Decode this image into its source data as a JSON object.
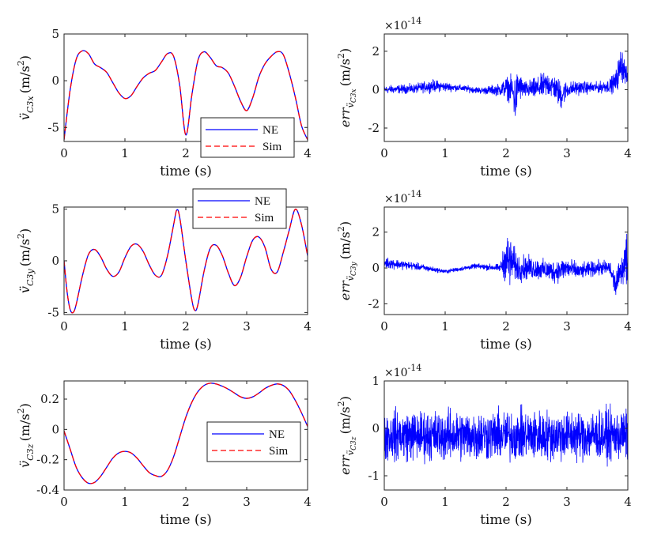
{
  "chart_data": [
    {
      "type": "line",
      "xlabel": "time (s)",
      "ylabel": {
        "symbol": "v̈",
        "sub": "C3x",
        "unit": "(m/s",
        "unit_sup": "2",
        "unit_close": ")"
      },
      "xlim": [
        0,
        4
      ],
      "ylim": [
        -6.5,
        5
      ],
      "xticks": [
        "0",
        "1",
        "2",
        "3",
        "4"
      ],
      "yticks": [
        {
          "v": 5,
          "label": "5"
        },
        {
          "v": 0,
          "label": "0"
        },
        {
          "v": -5,
          "label": "-5"
        }
      ],
      "legend": {
        "position": "bottom-right",
        "entries": [
          "NE",
          "Sim"
        ]
      },
      "series": [
        {
          "name": "NE",
          "color": "#0000ff",
          "style": "solid"
        },
        {
          "name": "Sim",
          "color": "#ff0000",
          "style": "dashed"
        }
      ],
      "x": [
        0,
        0.1,
        0.2,
        0.3,
        0.4,
        0.5,
        0.6,
        0.7,
        0.8,
        0.9,
        1.0,
        1.1,
        1.2,
        1.3,
        1.4,
        1.5,
        1.6,
        1.7,
        1.8,
        1.9,
        2.0,
        2.1,
        2.2,
        2.3,
        2.4,
        2.5,
        2.6,
        2.7,
        2.8,
        2.9,
        3.0,
        3.1,
        3.2,
        3.3,
        3.4,
        3.5,
        3.6,
        3.7,
        3.8,
        3.9,
        4.0
      ],
      "y": [
        -6.3,
        -1.0,
        2.3,
        3.2,
        2.9,
        1.8,
        1.4,
        0.9,
        -0.2,
        -1.3,
        -1.9,
        -1.6,
        -0.6,
        0.3,
        0.8,
        1.1,
        2.0,
        2.9,
        2.6,
        -0.5,
        -5.8,
        -1.5,
        2.2,
        3.1,
        2.5,
        1.6,
        1.4,
        0.8,
        -0.6,
        -2.2,
        -3.2,
        -1.8,
        0.4,
        1.8,
        2.6,
        3.1,
        2.8,
        0.8,
        -1.8,
        -4.8,
        -6.3
      ]
    },
    {
      "type": "line",
      "xlabel": "time (s)",
      "ylabel": {
        "symbol": "err",
        "sub": "v̈",
        "subsub": "C3x",
        "unit": "(m/s",
        "unit_sup": "2",
        "unit_close": ")"
      },
      "exponent": {
        "base": "×10",
        "power": "-14"
      },
      "xlim": [
        0,
        4
      ],
      "ylim": [
        -2.7,
        2.9
      ],
      "xticks": [
        "0",
        "1",
        "2",
        "3",
        "4"
      ],
      "yticks": [
        {
          "v": 2,
          "label": "2"
        },
        {
          "v": 0,
          "label": "0"
        },
        {
          "v": -2,
          "label": "-2"
        }
      ],
      "noise": true,
      "color": "#0000ff",
      "x": [
        0,
        0.5,
        0.8,
        1.2,
        1.6,
        1.9,
        2.0,
        2.1,
        2.15,
        2.2,
        2.3,
        2.5,
        2.7,
        2.8,
        2.9,
        3.0,
        3.2,
        3.5,
        3.7,
        3.8,
        3.9,
        4.0
      ],
      "mean": [
        0,
        0.05,
        0.2,
        0.1,
        -0.05,
        0.0,
        0.1,
        0.0,
        -0.6,
        0.2,
        0.0,
        0.05,
        0.3,
        0.1,
        -0.3,
        0.0,
        0.1,
        0.1,
        0.2,
        0.4,
        1.4,
        0.5
      ],
      "amp": [
        0.3,
        0.35,
        0.45,
        0.25,
        0.25,
        0.45,
        0.8,
        1.0,
        1.9,
        1.2,
        0.6,
        0.8,
        1.0,
        0.9,
        1.1,
        0.6,
        0.5,
        0.4,
        0.5,
        0.8,
        1.4,
        0.4
      ]
    },
    {
      "type": "line",
      "xlabel": "time (s)",
      "ylabel": {
        "symbol": "v̈",
        "sub": "C3y",
        "unit": "(m/s",
        "unit_sup": "2",
        "unit_close": ")"
      },
      "xlim": [
        0,
        4
      ],
      "ylim": [
        -5.2,
        5.2
      ],
      "xticks": [
        "0",
        "1",
        "2",
        "3",
        "4"
      ],
      "yticks": [
        {
          "v": 5,
          "label": "5"
        },
        {
          "v": 0,
          "label": "0"
        },
        {
          "v": -5,
          "label": "-5"
        }
      ],
      "legend": {
        "position": "top-center",
        "entries": [
          "NE",
          "Sim"
        ]
      },
      "series": [
        {
          "name": "NE",
          "color": "#0000ff",
          "style": "solid"
        },
        {
          "name": "Sim",
          "color": "#ff0000",
          "style": "dashed"
        }
      ],
      "x": [
        0,
        0.05,
        0.1,
        0.15,
        0.2,
        0.3,
        0.4,
        0.5,
        0.6,
        0.7,
        0.8,
        0.9,
        1.0,
        1.1,
        1.2,
        1.3,
        1.4,
        1.5,
        1.6,
        1.7,
        1.8,
        1.85,
        1.9,
        2.0,
        2.1,
        2.15,
        2.2,
        2.3,
        2.4,
        2.5,
        2.6,
        2.7,
        2.8,
        2.9,
        3.0,
        3.1,
        3.2,
        3.3,
        3.4,
        3.5,
        3.6,
        3.7,
        3.8,
        3.9,
        4.0
      ],
      "y": [
        0,
        -3.0,
        -4.7,
        -5.0,
        -4.2,
        -1.5,
        0.6,
        1.1,
        0.4,
        -0.8,
        -1.5,
        -1.1,
        0.3,
        1.4,
        1.6,
        0.9,
        -0.4,
        -1.4,
        -1.4,
        0.5,
        3.5,
        4.9,
        4.2,
        0.0,
        -3.8,
        -4.8,
        -4.2,
        -1.0,
        1.2,
        1.5,
        0.5,
        -1.2,
        -2.4,
        -1.6,
        0.4,
        2.0,
        2.3,
        1.3,
        -0.8,
        -1.1,
        0.8,
        3.0,
        5.0,
        3.5,
        0.5
      ]
    },
    {
      "type": "line",
      "xlabel": "time (s)",
      "ylabel": {
        "symbol": "err",
        "sub": "v̈",
        "subsub": "C3y",
        "unit": "(m/s",
        "unit_sup": "2",
        "unit_close": ")"
      },
      "exponent": {
        "base": "×10",
        "power": "-14"
      },
      "xlim": [
        0,
        4
      ],
      "ylim": [
        -2.6,
        3.4
      ],
      "xticks": [
        "0",
        "1",
        "2",
        "3",
        "4"
      ],
      "yticks": [
        {
          "v": 2,
          "label": "2"
        },
        {
          "v": 0,
          "label": "0"
        },
        {
          "v": -2,
          "label": "-2"
        }
      ],
      "noise": true,
      "color": "#0000ff",
      "x": [
        0,
        0.5,
        1.0,
        1.5,
        1.9,
        2.0,
        2.05,
        2.1,
        2.2,
        2.4,
        2.6,
        2.8,
        3.0,
        3.2,
        3.5,
        3.7,
        3.8,
        3.9,
        4.0
      ],
      "mean": [
        0.3,
        0.1,
        -0.2,
        0.1,
        0.0,
        0.5,
        0.3,
        0.3,
        0.0,
        0.0,
        -0.1,
        -0.2,
        0.0,
        -0.2,
        0.0,
        0.0,
        -1.0,
        0.0,
        0.5
      ],
      "amp": [
        0.45,
        0.3,
        0.15,
        0.2,
        0.3,
        1.8,
        2.4,
        1.5,
        1.1,
        0.9,
        0.8,
        0.9,
        0.9,
        0.6,
        0.6,
        0.6,
        1.0,
        1.0,
        2.5
      ]
    },
    {
      "type": "line",
      "xlabel": "time (s)",
      "ylabel": {
        "symbol": "v̈",
        "sub": "C3z",
        "unit": "(m/s",
        "unit_sup": "2",
        "unit_close": ")"
      },
      "xlim": [
        0,
        4
      ],
      "ylim": [
        -0.4,
        0.32
      ],
      "xticks": [
        "0",
        "1",
        "2",
        "3",
        "4"
      ],
      "yticks": [
        {
          "v": 0.2,
          "label": "0.2"
        },
        {
          "v": 0,
          "label": "0"
        },
        {
          "v": -0.2,
          "label": "-0.2"
        },
        {
          "v": -0.4,
          "label": "-0.4"
        }
      ],
      "legend": {
        "position": "right",
        "entries": [
          "NE",
          "Sim"
        ]
      },
      "series": [
        {
          "name": "NE",
          "color": "#0000ff",
          "style": "solid"
        },
        {
          "name": "Sim",
          "color": "#ff0000",
          "style": "dashed"
        }
      ],
      "x": [
        0,
        0.1,
        0.2,
        0.3,
        0.4,
        0.5,
        0.6,
        0.7,
        0.8,
        0.9,
        1.0,
        1.1,
        1.2,
        1.3,
        1.4,
        1.5,
        1.6,
        1.7,
        1.8,
        1.9,
        2.0,
        2.1,
        2.2,
        2.3,
        2.4,
        2.5,
        2.6,
        2.7,
        2.8,
        2.9,
        3.0,
        3.1,
        3.2,
        3.3,
        3.4,
        3.5,
        3.6,
        3.7,
        3.8,
        3.9,
        4.0
      ],
      "y": [
        -0.01,
        -0.13,
        -0.25,
        -0.32,
        -0.355,
        -0.35,
        -0.31,
        -0.25,
        -0.19,
        -0.155,
        -0.145,
        -0.155,
        -0.19,
        -0.24,
        -0.285,
        -0.305,
        -0.31,
        -0.27,
        -0.18,
        -0.05,
        0.08,
        0.18,
        0.25,
        0.29,
        0.305,
        0.3,
        0.285,
        0.265,
        0.24,
        0.215,
        0.205,
        0.215,
        0.24,
        0.27,
        0.29,
        0.3,
        0.29,
        0.255,
        0.19,
        0.11,
        0.02
      ]
    },
    {
      "type": "line",
      "xlabel": "time (s)",
      "ylabel": {
        "symbol": "err",
        "sub": "v̈",
        "subsub": "C3z",
        "unit": "(m/s",
        "unit_sup": "2",
        "unit_close": ")"
      },
      "exponent": {
        "base": "×10",
        "power": "-14"
      },
      "xlim": [
        0,
        4
      ],
      "ylim": [
        -1.3,
        1.0
      ],
      "xticks": [
        "0",
        "1",
        "2",
        "3",
        "4"
      ],
      "yticks": [
        {
          "v": 1,
          "label": "1"
        },
        {
          "v": 0,
          "label": "0"
        },
        {
          "v": -1,
          "label": "-1"
        }
      ],
      "noise": true,
      "color": "#0000ff",
      "x": [
        0,
        1,
        2,
        3,
        4
      ],
      "mean": [
        -0.15,
        -0.15,
        -0.15,
        -0.15,
        -0.15
      ],
      "amp": [
        0.75,
        0.75,
        0.75,
        0.75,
        0.75
      ]
    }
  ]
}
